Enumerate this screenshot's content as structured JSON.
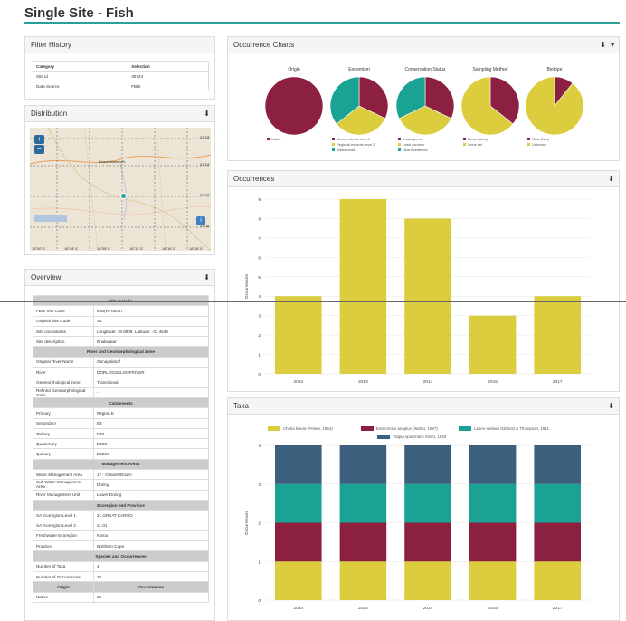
{
  "page": {
    "title": "Single Site - Fish"
  },
  "filter_history": {
    "title": "Filter History",
    "headers": [
      "Category",
      "Selection"
    ],
    "rows": [
      [
        "Site id",
        "30724"
      ],
      [
        "Data Source",
        "FBIS"
      ]
    ]
  },
  "distribution": {
    "title": "Distribution",
    "zoom_in": "+",
    "zoom_out": "−",
    "place": "Beaufortwestvlei",
    "lat_labels": [
      "31°18'",
      "31°24'",
      "31°30'",
      "31°36'"
    ],
    "lon_labels": [
      "18°00' E",
      "18°04' E",
      "18°08' E",
      "18°12' E",
      "18°16' E",
      "18°18' E"
    ]
  },
  "overview": {
    "title": "Overview",
    "header": "Site Details",
    "rows": [
      {
        "label": "FBIS Site Code",
        "value": "E30(R)-00017"
      },
      {
        "label": "Original Site Code",
        "value": "S1"
      },
      {
        "label": "Site coordinates",
        "value": "Longitude: 19.0809, Latitude: -31.4646"
      },
      {
        "label": "Site description",
        "value": "Bhakwatar"
      },
      {
        "section": "River and Geomorphological Zone"
      },
      {
        "label": "Original River Name",
        "value": "Gonagakloof"
      },
      {
        "label": "River",
        "value": "DORLOGSKLOOFRIVER"
      },
      {
        "label": "Geomorphological zone",
        "value": "Transitional"
      },
      {
        "label": "Refined Geomorphological zone",
        "value": "-"
      },
      {
        "section": "Catchments"
      },
      {
        "label": "Primary",
        "value": "Region E"
      },
      {
        "label": "Secondary",
        "value": "E4"
      },
      {
        "label": "Tertiary",
        "value": "E40"
      },
      {
        "label": "Quaternary",
        "value": "E40C"
      },
      {
        "label": "Quinary",
        "value": "E40C3"
      },
      {
        "section": "Management Areas"
      },
      {
        "label": "Water Management Area",
        "value": "17 - Olifants/Doorn"
      },
      {
        "label": "Sub Water Management Area",
        "value": "Doring"
      },
      {
        "label": "River Management Unit",
        "value": "Lower Doring"
      },
      {
        "section": "Ecoregion and Province"
      },
      {
        "label": "SA Ecoregion Level 1",
        "value": "21 GREAT KAROO"
      },
      {
        "label": "SA Ecoregion Level 2",
        "value": "21.01"
      },
      {
        "label": "Freshwater Ecoregion",
        "value": "Karoo"
      },
      {
        "label": "Province",
        "value": "Northern Cape"
      },
      {
        "section": "Species and Occurrences"
      },
      {
        "label": "Number of Taxa",
        "value": "4"
      },
      {
        "label": "Number of Occurrences",
        "value": "28"
      },
      {
        "head2": true,
        "label": "Origin",
        "value": "Occurrences"
      },
      {
        "label": "Native",
        "value": "28"
      }
    ]
  },
  "occurrence_charts": {
    "title": "Occurrence Charts",
    "pies": [
      {
        "title": "Origin",
        "slices": [
          {
            "label": "Native",
            "value": 28,
            "color": "#8b2040"
          }
        ]
      },
      {
        "title": "Endemism",
        "slices": [
          {
            "label": "Micro-endemic level 1",
            "value": 9,
            "color": "#8b2040"
          },
          {
            "label": "Regional endemic level 2",
            "value": 9,
            "color": "#dccd3f"
          },
          {
            "label": "Widespread",
            "value": 10,
            "color": "#1aa394"
          }
        ]
      },
      {
        "title": "Conservation Status",
        "slices": [
          {
            "label": "Endangered",
            "value": 9,
            "color": "#8b2040"
          },
          {
            "label": "Least concern",
            "value": 10,
            "color": "#dccd3f"
          },
          {
            "label": "Near threatened",
            "value": 9,
            "color": "#1aa394"
          }
        ]
      },
      {
        "title": "Sampling Method",
        "slices": [
          {
            "label": "Electrofishing",
            "value": 10,
            "color": "#8b2040"
          },
          {
            "label": "Seine net",
            "value": 18,
            "color": "#dccd3f"
          }
        ]
      },
      {
        "title": "Biotope",
        "slices": [
          {
            "label": "Glide-Deep",
            "value": 3,
            "color": "#8b2040"
          },
          {
            "label": "Unknown",
            "value": 25,
            "color": "#dccd3f"
          }
        ]
      }
    ]
  },
  "occurrences": {
    "title": "Occurrences",
    "download": "⬇",
    "chart_data": {
      "type": "bar",
      "categories": [
        "2010",
        "2013",
        "2014",
        "2015",
        "2017"
      ],
      "values": [
        4,
        9,
        8,
        3,
        4
      ],
      "ylabel": "Occurrences",
      "ylim": [
        0,
        9
      ],
      "color": "#dccd3f"
    }
  },
  "taxa": {
    "title": "Taxa",
    "download": "⬇",
    "chart_data": {
      "type": "bar",
      "stacked": true,
      "categories": [
        "2010",
        "2013",
        "2014",
        "2015",
        "2017"
      ],
      "ylabel": "Occurrences",
      "ylim": [
        0,
        4
      ],
      "series": [
        {
          "name": "Chetia brevis (Peters, 1864)",
          "values": [
            1,
            1,
            1,
            1,
            1
          ],
          "color": "#dccd3f"
        },
        {
          "name": "Enteromius anoplus (Weber, 1897)",
          "values": [
            1,
            1,
            1,
            1,
            1
          ],
          "color": "#8b2040"
        },
        {
          "name": "Labeo seeberi Gilchrist & Thompson, 1911",
          "values": [
            1,
            1,
            1,
            1,
            1
          ],
          "color": "#1aa394"
        },
        {
          "name": "Tilapia sparrmanii Smith, 1840",
          "values": [
            1,
            1,
            1,
            1,
            1
          ],
          "color": "#3b5f7d"
        }
      ]
    }
  }
}
